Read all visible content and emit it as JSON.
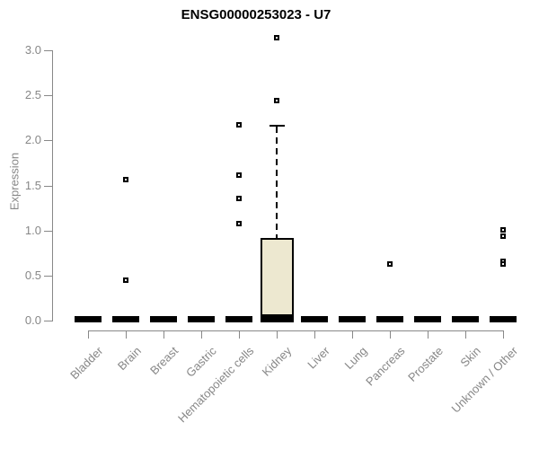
{
  "chart_data": {
    "type": "boxplot",
    "title": "ENSG00000253023 - U7",
    "ylabel": "Expression",
    "xlabel": "",
    "ylim": [
      0.0,
      3.0
    ],
    "yticks": [
      "0.0",
      "0.5",
      "1.0",
      "1.5",
      "2.0",
      "2.5",
      "3.0"
    ],
    "grid": false,
    "legend": null,
    "marker": "open-square",
    "categories": [
      "Bladder",
      "Brain",
      "Breast",
      "Gastric",
      "Hematopoietic cells",
      "Kidney",
      "Liver",
      "Lung",
      "Pancreas",
      "Prostate",
      "Skin",
      "Unknown / Other"
    ],
    "boxes": [
      {
        "category": "Bladder",
        "q1": 0,
        "median": 0,
        "q3": 0,
        "whisker_low": 0,
        "whisker_high": 0,
        "outliers": []
      },
      {
        "category": "Brain",
        "q1": 0,
        "median": 0,
        "q3": 0,
        "whisker_low": 0,
        "whisker_high": 0,
        "outliers": [
          1.56,
          0.45
        ]
      },
      {
        "category": "Breast",
        "q1": 0,
        "median": 0,
        "q3": 0,
        "whisker_low": 0,
        "whisker_high": 0,
        "outliers": []
      },
      {
        "category": "Gastric",
        "q1": 0,
        "median": 0,
        "q3": 0,
        "whisker_low": 0,
        "whisker_high": 0,
        "outliers": []
      },
      {
        "category": "Hematopoietic cells",
        "q1": 0,
        "median": 0,
        "q3": 0,
        "whisker_low": 0,
        "whisker_high": 0,
        "outliers": [
          2.17,
          1.61,
          1.36,
          1.08
        ]
      },
      {
        "category": "Kidney",
        "q1": 0,
        "median": 0.02,
        "q3": 0.92,
        "whisker_low": 0,
        "whisker_high": 2.16,
        "outliers": [
          2.44,
          3.14
        ]
      },
      {
        "category": "Liver",
        "q1": 0,
        "median": 0,
        "q3": 0,
        "whisker_low": 0,
        "whisker_high": 0,
        "outliers": []
      },
      {
        "category": "Lung",
        "q1": 0,
        "median": 0,
        "q3": 0,
        "whisker_low": 0,
        "whisker_high": 0,
        "outliers": []
      },
      {
        "category": "Pancreas",
        "q1": 0,
        "median": 0,
        "q3": 0,
        "whisker_low": 0,
        "whisker_high": 0,
        "outliers": [
          0.63
        ]
      },
      {
        "category": "Prostate",
        "q1": 0,
        "median": 0,
        "q3": 0,
        "whisker_low": 0,
        "whisker_high": 0,
        "outliers": []
      },
      {
        "category": "Skin",
        "q1": 0,
        "median": 0,
        "q3": 0,
        "whisker_low": 0,
        "whisker_high": 0,
        "outliers": []
      },
      {
        "category": "Unknown / Other",
        "q1": 0,
        "median": 0,
        "q3": 0,
        "whisker_low": 0,
        "whisker_high": 0,
        "outliers": [
          1.01,
          0.94,
          0.66,
          0.63
        ]
      }
    ],
    "colors": {
      "box_fill": "#ede8d0",
      "box_border": "#000000",
      "whisker": "#000000",
      "outlier": "#000000",
      "axis": "#888888",
      "text": "#878787",
      "title": "#000000",
      "background": "#ffffff"
    }
  }
}
